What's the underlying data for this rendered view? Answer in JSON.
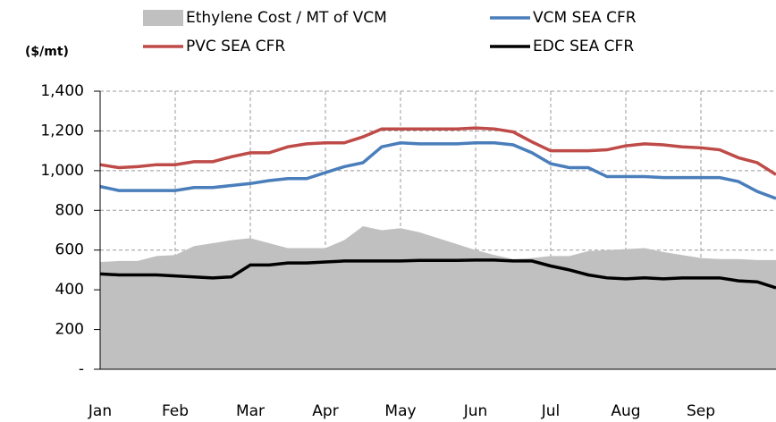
{
  "chart_data": {
    "type": "line",
    "y_label": "($/mt)",
    "categories": [
      "Jan",
      null,
      null,
      null,
      "Feb",
      null,
      null,
      null,
      "Mar",
      null,
      null,
      null,
      "Apr",
      null,
      null,
      null,
      "May",
      null,
      null,
      null,
      "Jun",
      null,
      null,
      null,
      "Jul",
      null,
      null,
      null,
      "Aug",
      null,
      null,
      null,
      "Sep",
      null,
      null,
      null,
      null
    ],
    "series": [
      {
        "name": "Ethylene Cost / MT of VCM",
        "kind": "area",
        "color": "#c0c0c0",
        "values": [
          540,
          545,
          545,
          570,
          575,
          620,
          635,
          650,
          660,
          635,
          610,
          610,
          610,
          650,
          720,
          700,
          710,
          690,
          660,
          630,
          600,
          575,
          555,
          560,
          570,
          570,
          595,
          600,
          605,
          610,
          590,
          575,
          560,
          555,
          555,
          550,
          550
        ]
      },
      {
        "name": "VCM SEA CFR",
        "kind": "line",
        "color": "#4a7ebb",
        "values": [
          920,
          900,
          900,
          900,
          900,
          915,
          915,
          925,
          935,
          950,
          960,
          960,
          990,
          1020,
          1040,
          1120,
          1140,
          1135,
          1135,
          1135,
          1140,
          1140,
          1130,
          1090,
          1035,
          1015,
          1015,
          970,
          970,
          970,
          965,
          965,
          965,
          965,
          945,
          895,
          860
        ]
      },
      {
        "name": "PVC SEA CFR",
        "kind": "line",
        "color": "#be4b48",
        "values": [
          1030,
          1015,
          1020,
          1030,
          1030,
          1045,
          1045,
          1070,
          1090,
          1090,
          1120,
          1135,
          1140,
          1140,
          1170,
          1210,
          1210,
          1210,
          1210,
          1210,
          1215,
          1210,
          1195,
          1145,
          1100,
          1100,
          1100,
          1105,
          1125,
          1135,
          1130,
          1120,
          1115,
          1105,
          1065,
          1040,
          980
        ]
      },
      {
        "name": "EDC SEA CFR",
        "kind": "line",
        "color": "#000000",
        "values": [
          480,
          475,
          475,
          475,
          470,
          465,
          460,
          465,
          525,
          525,
          535,
          535,
          540,
          545,
          545,
          545,
          545,
          548,
          548,
          548,
          550,
          550,
          545,
          545,
          520,
          500,
          475,
          460,
          455,
          460,
          455,
          460,
          460,
          460,
          445,
          440,
          410
        ]
      }
    ],
    "ylim": [
      0,
      1400
    ],
    "yticks": [
      {
        "value": 0,
        "label": "-"
      },
      200,
      400,
      600,
      800,
      {
        "value": 1000,
        "label": "1,000"
      },
      {
        "value": 1200,
        "label": "1,200"
      },
      {
        "value": 1400,
        "label": "1,400"
      }
    ],
    "grid": true
  }
}
